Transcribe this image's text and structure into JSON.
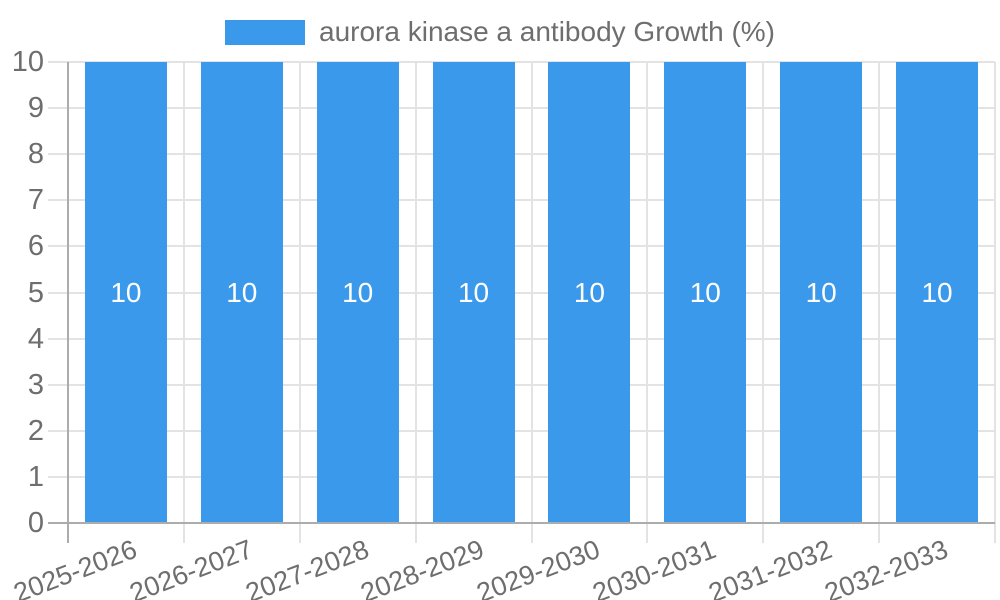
{
  "chart_data": {
    "type": "bar",
    "title": "",
    "legend": [
      "aurora kinase a antibody Growth (%)"
    ],
    "legend_position": "top",
    "categories": [
      "2025-2026",
      "2026-2027",
      "2027-2028",
      "2028-2029",
      "2029-2030",
      "2030-2031",
      "2031-2032",
      "2032-2033"
    ],
    "values": [
      10,
      10,
      10,
      10,
      10,
      10,
      10,
      10
    ],
    "data_labels": [
      "10",
      "10",
      "10",
      "10",
      "10",
      "10",
      "10",
      "10"
    ],
    "xlabel": "",
    "ylabel": "",
    "ylim": [
      0,
      10
    ],
    "ytick_step": 1,
    "yticks": [
      "0",
      "1",
      "2",
      "3",
      "4",
      "5",
      "6",
      "7",
      "8",
      "9",
      "10"
    ],
    "grid": true,
    "colors": {
      "bar": "#3b99ec",
      "tick_text": "#6e6e6e",
      "gridline": "#e3e3e3",
      "axis_line": "#acacac",
      "bar_value_text": "#ffffff",
      "background": "#ffffff"
    }
  }
}
